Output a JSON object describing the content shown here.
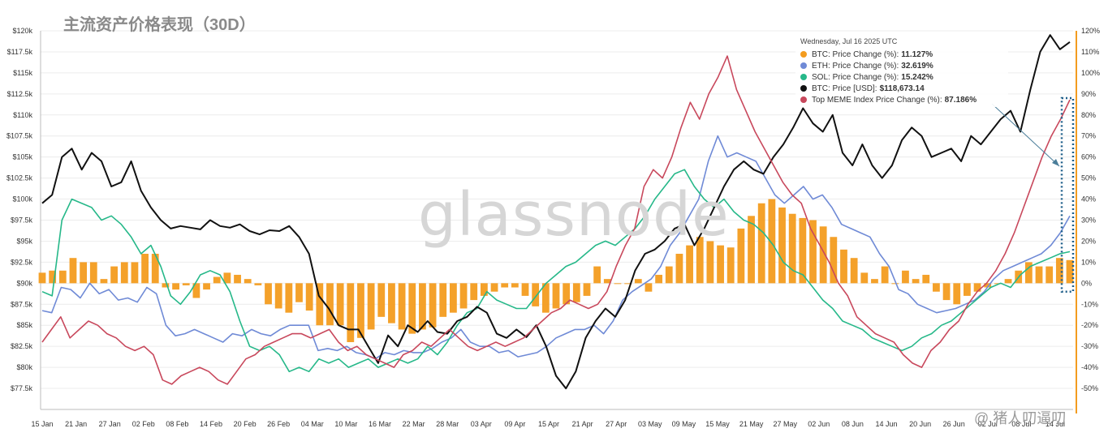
{
  "title": "主流资产价格表现（30D）",
  "watermark": "glassnode",
  "credit": "@ 猪人叨逼叨",
  "colors": {
    "btc_change": "#f39c1f",
    "eth_change": "#6f8ad6",
    "sol_change": "#26b889",
    "btc_price": "#111111",
    "meme_change": "#c8485c",
    "right_axis": "#f39c1f",
    "highlight_box": "#1f5f8a",
    "grid": "#ececec"
  },
  "tooltip": {
    "date": "Wednesday, Jul 16 2025 UTC",
    "rows": [
      {
        "label": "BTC: Price Change (%): ",
        "value": "11.127%",
        "color_key": "btc_change"
      },
      {
        "label": "ETH: Price Change (%): ",
        "value": "32.619%",
        "color_key": "eth_change"
      },
      {
        "label": "SOL: Price Change (%): ",
        "value": "15.242%",
        "color_key": "sol_change"
      },
      {
        "label": "BTC: Price [USD]: ",
        "value": "$118,673.14",
        "color_key": "btc_price"
      },
      {
        "label": "Top MEME Index Price Change (%): ",
        "value": "87.186%",
        "color_key": "meme_change"
      }
    ]
  },
  "chart_data": {
    "type": "line",
    "x_range": [
      "2025-01-15",
      "2025-07-16"
    ],
    "x_tick_labels": [
      "15 Jan",
      "21 Jan",
      "27 Jan",
      "02 Feb",
      "08 Feb",
      "14 Feb",
      "20 Feb",
      "26 Feb",
      "04 Mar",
      "10 Mar",
      "16 Mar",
      "22 Mar",
      "28 Mar",
      "03 Apr",
      "09 Apr",
      "15 Apr",
      "21 Apr",
      "27 Apr",
      "03 May",
      "09 May",
      "15 May",
      "21 May",
      "27 May",
      "02 Jun",
      "08 Jun",
      "14 Jun",
      "20 Jun",
      "26 Jun",
      "02 Jul",
      "08 Jul",
      "14 Jul"
    ],
    "left_axis": {
      "unit": "USD",
      "range": [
        75000,
        120000
      ],
      "tick_labels": [
        "$120k",
        "$117.5k",
        "$115k",
        "$112.5k",
        "$110k",
        "$107.5k",
        "$105k",
        "$102.5k",
        "$100k",
        "$97.5k",
        "$95k",
        "$92.5k",
        "$90k",
        "$87.5k",
        "$85k",
        "$82.5k",
        "$80k",
        "$77.5k"
      ]
    },
    "right_axis": {
      "unit": "%",
      "range": [
        -60,
        120
      ],
      "tick_labels": [
        "120%",
        "110%",
        "100%",
        "90%",
        "80%",
        "70%",
        "60%",
        "50%",
        "40%",
        "30%",
        "20%",
        "10%",
        "0%",
        "-10%",
        "-20%",
        "-30%",
        "-40%",
        "-50%"
      ]
    },
    "grid": true,
    "series": [
      {
        "name": "BTC: Price Change (%)",
        "style": "bars",
        "axis": "right",
        "color_key": "btc_change",
        "values": [
          5,
          6,
          6,
          12,
          10,
          10,
          2,
          8,
          10,
          10,
          14,
          14,
          -2,
          -3,
          -1,
          -7,
          -3,
          3,
          5,
          4,
          2,
          -1,
          -10,
          -12,
          -14,
          -9,
          -13,
          -20,
          -20,
          -20,
          -28,
          -26,
          -22,
          -16,
          -19,
          -22,
          -24,
          -22,
          -21,
          -16,
          -14,
          -12,
          -8,
          -6,
          -4,
          -2,
          -2,
          -6,
          -11,
          -14,
          -12,
          -10,
          -9,
          -6,
          8,
          2,
          0,
          0,
          2,
          -4,
          4,
          8,
          14,
          18,
          22,
          20,
          18,
          17,
          26,
          32,
          38,
          40,
          36,
          33,
          31,
          30,
          27,
          22,
          16,
          12,
          5,
          2,
          8,
          0,
          6,
          2,
          4,
          -4,
          -8,
          -10,
          -6,
          -4,
          -2,
          0,
          2,
          6,
          10,
          8,
          8,
          12,
          11
        ]
      },
      {
        "name": "ETH: Price Change (%)",
        "style": "line",
        "axis": "right",
        "color_key": "eth_change",
        "values": [
          -13,
          -14,
          -2,
          -3,
          -7,
          0,
          -5,
          -3,
          -8,
          -7,
          -9,
          -2,
          -5,
          -20,
          -25,
          -24,
          -22,
          -24,
          -26,
          -28,
          -24,
          -25,
          -22,
          -24,
          -25,
          -22,
          -20,
          -20,
          -20,
          -32,
          -31,
          -32,
          -30,
          -33,
          -34,
          -36,
          -33,
          -34,
          -32,
          -33,
          -33,
          -31,
          -28,
          -26,
          -22,
          -28,
          -30,
          -30,
          -33,
          -32,
          -35,
          -34,
          -33,
          -30,
          -26,
          -24,
          -22,
          -22,
          -20,
          -24,
          -18,
          -8,
          -4,
          -1,
          2,
          8,
          18,
          24,
          32,
          40,
          58,
          70,
          60,
          62,
          60,
          58,
          50,
          42,
          38,
          42,
          46,
          40,
          42,
          36,
          28,
          26,
          24,
          22,
          14,
          8,
          -3,
          -5,
          -10,
          -12,
          -14,
          -13,
          -12,
          -10,
          -8,
          -4,
          2,
          6,
          8,
          10,
          12,
          14,
          18,
          24,
          32
        ]
      },
      {
        "name": "SOL: Price Change (%)",
        "style": "line",
        "axis": "right",
        "color_key": "sol_change",
        "values": [
          -4,
          -6,
          30,
          40,
          38,
          36,
          30,
          32,
          28,
          22,
          14,
          18,
          8,
          -6,
          -10,
          -4,
          4,
          6,
          4,
          -4,
          -18,
          -30,
          -32,
          -30,
          -34,
          -42,
          -40,
          -42,
          -36,
          -38,
          -36,
          -40,
          -38,
          -36,
          -40,
          -38,
          -36,
          -38,
          -36,
          -30,
          -34,
          -28,
          -20,
          -14,
          -12,
          -4,
          -8,
          -10,
          -12,
          -12,
          -6,
          0,
          4,
          8,
          10,
          14,
          18,
          20,
          18,
          22,
          26,
          32,
          40,
          46,
          52,
          54,
          46,
          40,
          36,
          40,
          34,
          30,
          28,
          24,
          18,
          10,
          6,
          4,
          -2,
          -8,
          -12,
          -18,
          -20,
          -22,
          -26,
          -28,
          -30,
          -32,
          -30,
          -26,
          -24,
          -20,
          -18,
          -14,
          -10,
          -6,
          -2,
          0,
          -2,
          4,
          8,
          10,
          12,
          14,
          15
        ]
      },
      {
        "name": "BTC: Price [USD]",
        "style": "line",
        "axis": "left",
        "color_key": "btc_price",
        "values": [
          99500,
          100500,
          105000,
          106000,
          103500,
          105500,
          104500,
          101500,
          102000,
          104500,
          101000,
          99000,
          97500,
          96500,
          96800,
          96600,
          96400,
          97500,
          96800,
          96600,
          97000,
          96200,
          95800,
          96300,
          96200,
          96800,
          95500,
          93500,
          88500,
          87000,
          85000,
          84500,
          84500,
          82500,
          80500,
          83800,
          82500,
          85000,
          84200,
          85500,
          84200,
          84000,
          85500,
          86000,
          87200,
          86500,
          84000,
          83500,
          84500,
          83600,
          85000,
          82500,
          79000,
          77500,
          79500,
          83500,
          85500,
          87000,
          86000,
          88000,
          91500,
          93500,
          94000,
          95000,
          96500,
          97000,
          94500,
          96500,
          99000,
          101500,
          103500,
          104500,
          103500,
          103000,
          105000,
          106500,
          108500,
          110800,
          109000,
          108000,
          110000,
          105500,
          104000,
          106500,
          104000,
          102500,
          104000,
          107000,
          108500,
          107500,
          105000,
          105500,
          106000,
          104500,
          107500,
          106500,
          108000,
          109500,
          110500,
          108000,
          113000,
          117500,
          119500,
          117800,
          118673
        ]
      },
      {
        "name": "Top MEME Index Price Change (%)",
        "style": "line",
        "axis": "right",
        "color_key": "meme_change",
        "values": [
          -28,
          -22,
          -16,
          -26,
          -22,
          -18,
          -20,
          -24,
          -26,
          -30,
          -32,
          -30,
          -34,
          -46,
          -48,
          -44,
          -42,
          -40,
          -42,
          -46,
          -48,
          -42,
          -36,
          -34,
          -30,
          -28,
          -26,
          -24,
          -24,
          -26,
          -24,
          -22,
          -28,
          -32,
          -30,
          -34,
          -36,
          -38,
          -40,
          -34,
          -32,
          -28,
          -30,
          -26,
          -22,
          -26,
          -30,
          -32,
          -30,
          -28,
          -30,
          -28,
          -26,
          -22,
          -18,
          -14,
          -12,
          -8,
          -10,
          -12,
          -10,
          -4,
          8,
          18,
          26,
          46,
          54,
          50,
          60,
          74,
          86,
          78,
          90,
          98,
          108,
          92,
          82,
          72,
          64,
          56,
          48,
          42,
          38,
          26,
          18,
          10,
          0,
          -6,
          -16,
          -20,
          -24,
          -26,
          -28,
          -34,
          -38,
          -40,
          -32,
          -28,
          -22,
          -18,
          -10,
          -4,
          0,
          6,
          14,
          24,
          36,
          48,
          60,
          70,
          78,
          87.186
        ]
      }
    ],
    "annotation": {
      "type": "highlight_box",
      "note": "dotted box around the final values near 14 Jul"
    }
  }
}
